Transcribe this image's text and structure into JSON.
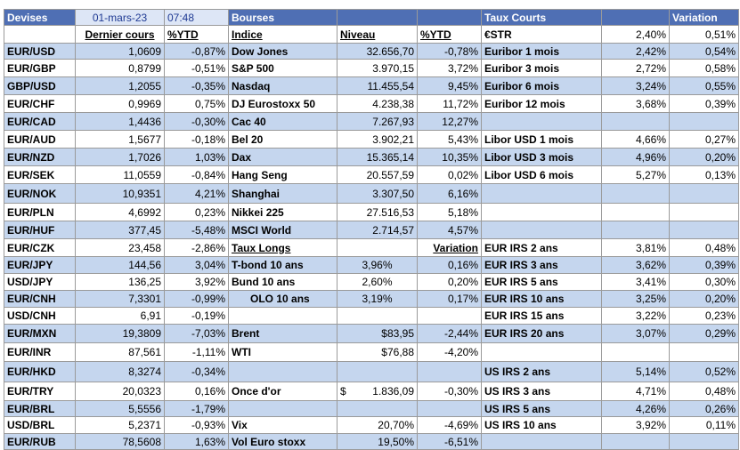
{
  "header": {
    "devises": "Devises",
    "date": "01-mars-23",
    "time": "07:48",
    "bourses": "Bourses",
    "taux_courts": "Taux Courts",
    "variation": "Variation"
  },
  "subheader": {
    "dernier_cours": "Dernier cours",
    "ytd": "%YTD",
    "indice": "Indice",
    "niveau": "Niveau",
    "ytd2": "%YTD",
    "estr": "€STR",
    "estr_rate": "2,40%",
    "estr_var": "0,51%"
  },
  "rows": [
    {
      "pair": "EUR/USD",
      "cours": "1,0609",
      "ytd": "-0,87%",
      "indice": "Dow Jones",
      "niveau": "32.656,70",
      "iytd": "-0,78%",
      "taux": "Euribor 1 mois",
      "rate": "2,42%",
      "var": "0,54%"
    },
    {
      "pair": "EUR/GBP",
      "cours": "0,8799",
      "ytd": "-0,51%",
      "indice": "S&P 500",
      "niveau": "3.970,15",
      "iytd": "3,72%",
      "taux": "Euribor 3 mois",
      "rate": "2,72%",
      "var": "0,58%"
    },
    {
      "pair": "GBP/USD",
      "cours": "1,2055",
      "ytd": "-0,35%",
      "indice": "Nasdaq",
      "niveau": "11.455,54",
      "iytd": "9,45%",
      "taux": "Euribor 6 mois",
      "rate": "3,24%",
      "var": "0,55%"
    },
    {
      "pair": "EUR/CHF",
      "cours": "0,9969",
      "ytd": "0,75%",
      "indice": "DJ Eurostoxx 50",
      "niveau": "4.238,38",
      "iytd": "11,72%",
      "taux": "Euribor 12 mois",
      "rate": "3,68%",
      "var": "0,39%"
    },
    {
      "pair": "EUR/CAD",
      "cours": "1,4436",
      "ytd": "-0,30%",
      "indice": "Cac 40",
      "niveau": "7.267,93",
      "iytd": "12,27%",
      "taux": "",
      "rate": "",
      "var": ""
    },
    {
      "pair": "EUR/AUD",
      "cours": "1,5677",
      "ytd": "-0,18%",
      "indice": "Bel 20",
      "niveau": "3.902,21",
      "iytd": "5,43%",
      "taux": "Libor USD 1 mois",
      "rate": "4,66%",
      "var": "0,27%"
    },
    {
      "pair": "EUR/NZD",
      "cours": "1,7026",
      "ytd": "1,03%",
      "indice": "Dax",
      "niveau": "15.365,14",
      "iytd": "10,35%",
      "taux": "Libor USD 3 mois",
      "rate": "4,96%",
      "var": "0,20%"
    },
    {
      "pair": "EUR/SEK",
      "cours": "11,0559",
      "ytd": "-0,84%",
      "indice": "Hang Seng",
      "niveau": "20.557,59",
      "iytd": "0,02%",
      "taux": "Libor USD 6 mois",
      "rate": "5,27%",
      "var": "0,13%"
    },
    {
      "pair": "EUR/NOK",
      "cours": "10,9351",
      "ytd": "4,21%",
      "indice": "Shanghai",
      "niveau": "3.307,50",
      "iytd": "6,16%",
      "taux": "",
      "rate": "",
      "var": ""
    },
    {
      "pair": "EUR/PLN",
      "cours": "4,6992",
      "ytd": "0,23%",
      "indice": "Nikkei 225",
      "niveau": "27.516,53",
      "iytd": "5,18%",
      "taux": "",
      "rate": "",
      "var": ""
    },
    {
      "pair": "EUR/HUF",
      "cours": "377,45",
      "ytd": "-5,48%",
      "indice": "MSCI World",
      "niveau": "2.714,57",
      "iytd": "4,57%",
      "taux": "",
      "rate": "",
      "var": ""
    },
    {
      "pair": "EUR/CZK",
      "cours": "23,458",
      "ytd": "-2,86%",
      "indice": "Taux Longs",
      "niveau": "",
      "iytd": "Variation",
      "taux": "EUR IRS 2 ans",
      "rate": "3,81%",
      "var": "0,48%"
    },
    {
      "pair": "EUR/JPY",
      "cours": "144,56",
      "ytd": "3,04%",
      "indice": "T-bond 10 ans",
      "niveau": "3,96%",
      "iytd": "0,16%",
      "taux": "EUR IRS 3 ans",
      "rate": "3,62%",
      "var": "0,39%"
    },
    {
      "pair": "USD/JPY",
      "cours": "136,25",
      "ytd": "3,92%",
      "indice": "Bund 10 ans",
      "niveau": "2,60%",
      "iytd": "0,20%",
      "taux": "EUR IRS 5 ans",
      "rate": "3,41%",
      "var": "0,30%"
    },
    {
      "pair": "EUR/CNH",
      "cours": "7,3301",
      "ytd": "-0,99%",
      "indice": "OLO 10 ans",
      "niveau": "3,19%",
      "iytd": "0,17%",
      "taux": "EUR IRS 10 ans",
      "rate": "3,25%",
      "var": "0,20%"
    },
    {
      "pair": "USD/CNH",
      "cours": "6,91",
      "ytd": "-0,19%",
      "indice": "",
      "niveau": "",
      "iytd": "",
      "taux": "EUR IRS 15 ans",
      "rate": "3,22%",
      "var": "0,23%"
    },
    {
      "pair": "EUR/MXN",
      "cours": "19,3809",
      "ytd": "-7,03%",
      "indice": "Brent",
      "niveau": "$83,95",
      "iytd": "-2,44%",
      "taux": "EUR IRS 20 ans",
      "rate": "3,07%",
      "var": "0,29%"
    },
    {
      "pair": "EUR/INR",
      "cours": "87,561",
      "ytd": "-1,11%",
      "indice": "WTI",
      "niveau": "$76,88",
      "iytd": "-4,20%",
      "taux": "",
      "rate": "",
      "var": ""
    },
    {
      "pair": "EUR/HKD",
      "cours": "8,3274",
      "ytd": "-0,34%",
      "indice": "",
      "niveau": "",
      "iytd": "",
      "taux": "US IRS 2 ans",
      "rate": "5,14%",
      "var": "0,52%"
    },
    {
      "pair": "EUR/TRY",
      "cours": "20,0323",
      "ytd": "0,16%",
      "indice": "Once d'or",
      "niveau": "1.836,09",
      "niveau_prefix": "$",
      "iytd": "-0,30%",
      "taux": "US IRS 3 ans",
      "rate": "4,71%",
      "var": "0,48%"
    },
    {
      "pair": "EUR/BRL",
      "cours": "5,5556",
      "ytd": "-1,79%",
      "indice": "",
      "niveau": "",
      "iytd": "",
      "taux": "US IRS 5 ans",
      "rate": "4,26%",
      "var": "0,26%"
    },
    {
      "pair": "USD/BRL",
      "cours": "5,2371",
      "ytd": "-0,93%",
      "indice": "Vix",
      "niveau": "20,70%",
      "iytd": "-4,69%",
      "taux": "US IRS 10 ans",
      "rate": "3,92%",
      "var": "0,11%"
    },
    {
      "pair": "EUR/RUB",
      "cours": "78,5608",
      "ytd": "1,63%",
      "indice": "Vol Euro stoxx",
      "niveau": "19,50%",
      "iytd": "-6,51%",
      "taux": "",
      "rate": "",
      "var": ""
    }
  ]
}
